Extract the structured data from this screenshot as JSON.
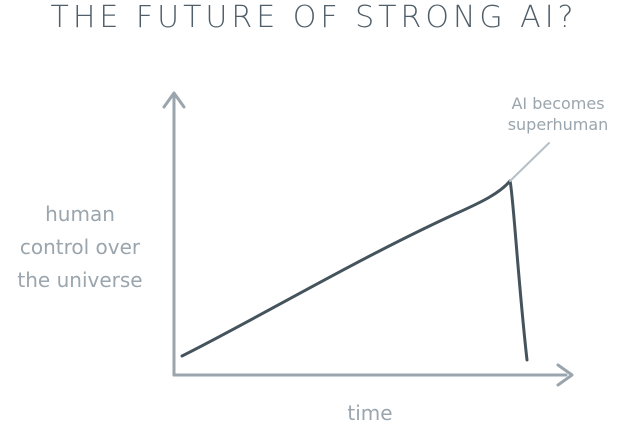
{
  "title": "THE FUTURE OF STRONG AI?",
  "chart_data": {
    "type": "line",
    "title": "THE FUTURE OF STRONG AI?",
    "xlabel": "time",
    "ylabel": "human control over the universe",
    "ylabel_lines": [
      "human",
      "control over",
      "the universe"
    ],
    "axis_ticks": false,
    "grid": false,
    "series": [
      {
        "points": [
          [
            0.0,
            0.1
          ],
          [
            0.58,
            0.7
          ],
          [
            0.6,
            0.75
          ],
          [
            0.62,
            0.0
          ]
        ]
      }
    ],
    "annotations": [
      {
        "lines": [
          "AI becomes",
          "superhuman"
        ],
        "target": [
          0.58,
          0.7
        ]
      }
    ],
    "colors": {
      "axis": "#9aa5ad",
      "line": "#45535c",
      "title": "#4f5e69",
      "label": "#9aa5ad"
    }
  }
}
